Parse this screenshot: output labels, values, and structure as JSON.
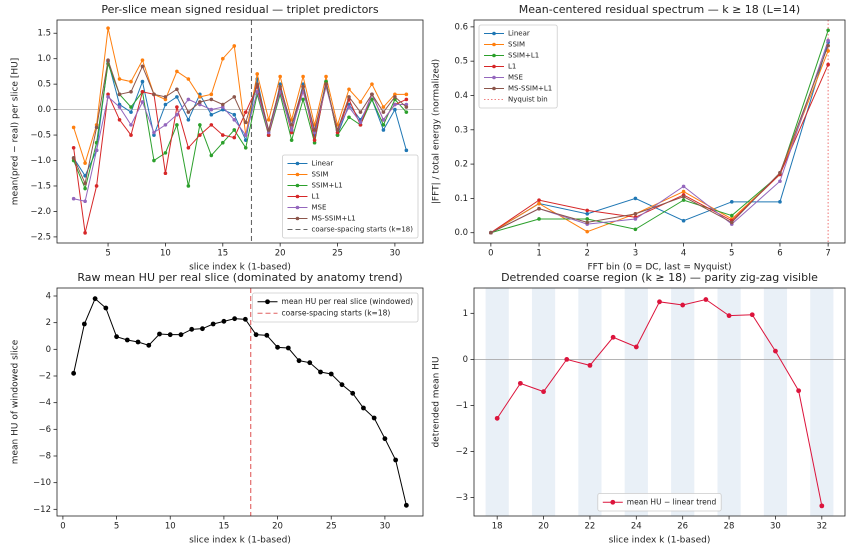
{
  "chart_data": [
    {
      "type": "line",
      "title": "Per-slice mean signed residual — triplet predictors",
      "xlabel": "slice index k (1-based)",
      "ylabel": "mean(pred − real) per slice  [HU]",
      "x": [
        2,
        3,
        4,
        5,
        6,
        7,
        8,
        9,
        10,
        11,
        12,
        13,
        14,
        15,
        16,
        17,
        18,
        19,
        20,
        21,
        22,
        23,
        24,
        25,
        26,
        27,
        28,
        29,
        30,
        31
      ],
      "xlim": [
        0.55,
        32.45
      ],
      "ylim": [
        -2.62,
        1.76
      ],
      "xticks": [
        5,
        10,
        15,
        20,
        25,
        30
      ],
      "yticks": [
        {
          "value": -2.5,
          "label": "−2.5"
        },
        {
          "value": -2.0,
          "label": "−2.0"
        },
        {
          "value": -1.5,
          "label": "−1.5"
        },
        {
          "value": -1.0,
          "label": "−1.0"
        },
        {
          "value": -0.5,
          "label": "−0.5"
        },
        {
          "value": 0,
          "label": "0.0"
        },
        0.5,
        {
          "value": 1.0,
          "label": "1.0"
        },
        1.5
      ],
      "hline": 0,
      "hline_color": "#bbbbbb",
      "legend": "lower right",
      "series": [
        {
          "name": "Linear",
          "color": "#1f77b4",
          "values": [
            -0.95,
            -1.3,
            -0.8,
            0.95,
            0.1,
            -0.05,
            0.55,
            -0.5,
            0.1,
            0.25,
            -0.2,
            0.3,
            -0.1,
            0.0,
            -0.1,
            -0.6,
            0.6,
            -0.5,
            0.5,
            -0.4,
            0.5,
            -0.5,
            0.55,
            -0.5,
            0.1,
            -0.2,
            0.2,
            -0.4,
            0.0,
            -0.8
          ]
        },
        {
          "name": "SSIM",
          "color": "#ff7f0e",
          "values": [
            -0.35,
            -1.05,
            -0.3,
            1.6,
            0.6,
            0.55,
            0.97,
            0.3,
            0.2,
            0.75,
            0.6,
            0.25,
            0.3,
            1.0,
            1.25,
            -0.5,
            0.7,
            -0.2,
            0.65,
            -0.2,
            0.65,
            -0.3,
            0.65,
            -0.3,
            0.4,
            0.15,
            0.5,
            0.05,
            0.3,
            0.3
          ]
        },
        {
          "name": "SSIM+L1",
          "color": "#2ca02c",
          "values": [
            -1.0,
            -1.55,
            -0.65,
            0.9,
            0.3,
            0.05,
            0.35,
            -1.0,
            -0.85,
            -0.3,
            -1.5,
            -0.3,
            -0.9,
            -0.65,
            -0.4,
            -0.75,
            0.3,
            -0.5,
            0.3,
            -0.6,
            0.2,
            -0.65,
            0.55,
            -0.5,
            -0.15,
            -0.3,
            0.2,
            -0.3,
            0.2,
            -0.05
          ]
        },
        {
          "name": "L1",
          "color": "#d62728",
          "values": [
            -0.75,
            -2.42,
            -1.5,
            0.3,
            -0.2,
            -0.5,
            0.35,
            0.3,
            -1.25,
            0.05,
            -0.75,
            -0.5,
            -0.3,
            -0.5,
            -0.55,
            -0.05,
            0.45,
            -0.5,
            0.4,
            -0.45,
            0.45,
            -0.6,
            0.5,
            -0.45,
            0.2,
            -0.3,
            0.3,
            -0.2,
            0.1,
            0.2
          ]
        },
        {
          "name": "MSE",
          "color": "#9467bd",
          "values": [
            -1.75,
            -1.8,
            -0.8,
            0.25,
            0.05,
            -0.3,
            0.15,
            -0.45,
            -0.3,
            -0.1,
            0.2,
            0.1,
            0.0,
            0.05,
            -0.2,
            -0.5,
            0.35,
            -0.45,
            0.35,
            -0.4,
            0.35,
            -0.45,
            0.45,
            -0.4,
            0.05,
            -0.25,
            0.3,
            -0.2,
            0.1,
            0.1
          ]
        },
        {
          "name": "MS-SSIM+L1",
          "color": "#8c564b",
          "values": [
            -0.95,
            -1.45,
            -0.35,
            0.97,
            0.3,
            0.35,
            0.85,
            0.3,
            0.25,
            0.4,
            -0.05,
            0.15,
            0.2,
            0.1,
            0.25,
            -0.25,
            0.5,
            -0.4,
            0.45,
            -0.3,
            0.45,
            -0.4,
            0.5,
            -0.4,
            0.25,
            -0.05,
            0.3,
            -0.05,
            0.25,
            0.05
          ]
        }
      ],
      "vlines": [
        {
          "x": 17.5,
          "label": "coarse-spacing starts (k=18)",
          "color": "#666666",
          "style": "dashed"
        }
      ]
    },
    {
      "type": "line",
      "title": "Mean-centered residual spectrum — k ≥ 18 (L=14)",
      "xlabel": "FFT bin (0 = DC, last = Nyquist)",
      "ylabel": "|FFT| / total energy (normalized)",
      "x": [
        0,
        1,
        2,
        3,
        4,
        5,
        6,
        7
      ],
      "xlim": [
        -0.35,
        7.35
      ],
      "ylim": [
        -0.03,
        0.62
      ],
      "xticks": [
        0,
        1,
        2,
        3,
        4,
        5,
        6,
        7
      ],
      "yticks": [
        {
          "value": 0,
          "label": "0.0"
        },
        0.1,
        0.2,
        0.3,
        0.4,
        0.5,
        0.6
      ],
      "legend": "upper left",
      "series": [
        {
          "name": "Linear",
          "color": "#1f77b4",
          "values": [
            0,
            0.085,
            0.055,
            0.1,
            0.035,
            0.09,
            0.09,
            0.555
          ]
        },
        {
          "name": "SSIM",
          "color": "#ff7f0e",
          "values": [
            0,
            0.085,
            0.003,
            0.055,
            0.12,
            0.04,
            0.17,
            0.53
          ]
        },
        {
          "name": "SSIM+L1",
          "color": "#2ca02c",
          "values": [
            0,
            0.04,
            0.04,
            0.01,
            0.095,
            0.05,
            0.17,
            0.59
          ]
        },
        {
          "name": "L1",
          "color": "#d62728",
          "values": [
            0,
            0.095,
            0.065,
            0.045,
            0.11,
            0.035,
            0.17,
            0.49
          ]
        },
        {
          "name": "MSE",
          "color": "#9467bd",
          "values": [
            0,
            0.07,
            0.025,
            0.04,
            0.135,
            0.025,
            0.15,
            0.56
          ]
        },
        {
          "name": "MS-SSIM+L1",
          "color": "#8c564b",
          "values": [
            0,
            0.07,
            0.03,
            0.055,
            0.105,
            0.03,
            0.175,
            0.545
          ]
        }
      ],
      "vlines": [
        {
          "x": 7,
          "label": "Nyquist bin",
          "color": "#f08080",
          "style": "dotted"
        }
      ]
    },
    {
      "type": "line",
      "title": "Raw mean HU per real slice (dominated by anatomy trend)",
      "xlabel": "slice index k (1-based)",
      "ylabel": "mean HU of windowed slice",
      "x": [
        1,
        2,
        3,
        4,
        5,
        6,
        7,
        8,
        9,
        10,
        11,
        12,
        13,
        14,
        15,
        16,
        17,
        18,
        19,
        20,
        21,
        22,
        23,
        24,
        25,
        26,
        27,
        28,
        29,
        30,
        31,
        32
      ],
      "xlim": [
        -0.55,
        33.55
      ],
      "ylim": [
        -12.5,
        4.6
      ],
      "xticks": [
        0,
        5,
        10,
        15,
        20,
        25,
        30
      ],
      "yticks": [
        {
          "value": -12,
          "label": "−12"
        },
        {
          "value": -10,
          "label": "−10"
        },
        {
          "value": -8,
          "label": "−8"
        },
        {
          "value": -6,
          "label": "−6"
        },
        {
          "value": -4,
          "label": "−4"
        },
        {
          "value": -2,
          "label": "−2"
        },
        0,
        2,
        4
      ],
      "legend": "upper right",
      "series": [
        {
          "name": "mean HU per real slice (windowed)",
          "color": "#000000",
          "values": [
            -1.8,
            1.9,
            3.8,
            3.1,
            0.95,
            0.7,
            0.55,
            0.3,
            1.15,
            1.1,
            1.1,
            1.5,
            1.55,
            1.9,
            2.1,
            2.3,
            2.25,
            1.1,
            1.05,
            0.15,
            0.1,
            -0.85,
            -1.0,
            -1.7,
            -1.85,
            -2.65,
            -3.3,
            -4.4,
            -5.15,
            -6.7,
            -8.3,
            -11.7
          ]
        }
      ],
      "vlines": [
        {
          "x": 17.5,
          "label": "coarse-spacing starts (k=18)",
          "color": "#e06060",
          "style": "dashed"
        }
      ]
    },
    {
      "type": "line",
      "title": "Detrended coarse region (k ≥ 18) — parity zig-zag visible",
      "xlabel": "slice index k (1-based)",
      "ylabel": "detrended mean HU",
      "x": [
        18,
        19,
        20,
        21,
        22,
        23,
        24,
        25,
        26,
        27,
        28,
        29,
        30,
        31,
        32
      ],
      "xlim": [
        17,
        33
      ],
      "ylim": [
        -3.4,
        1.55
      ],
      "xticks": [
        18,
        20,
        22,
        24,
        26,
        28,
        30,
        32
      ],
      "yticks": [
        {
          "value": -3,
          "label": "−3"
        },
        {
          "value": -2,
          "label": "−2"
        },
        {
          "value": -1,
          "label": "−1"
        },
        0,
        1
      ],
      "hline": 0,
      "hline_color": "#aaaaaa",
      "band_color": "#e9f0f7",
      "legend": "lower center",
      "series": [
        {
          "name": "mean HU − linear trend",
          "color": "#dc143c",
          "values": [
            -1.28,
            -0.52,
            -0.7,
            0.0,
            -0.13,
            0.48,
            0.27,
            1.25,
            1.18,
            1.3,
            0.95,
            0.97,
            0.18,
            -0.68,
            -3.18
          ]
        }
      ]
    }
  ]
}
